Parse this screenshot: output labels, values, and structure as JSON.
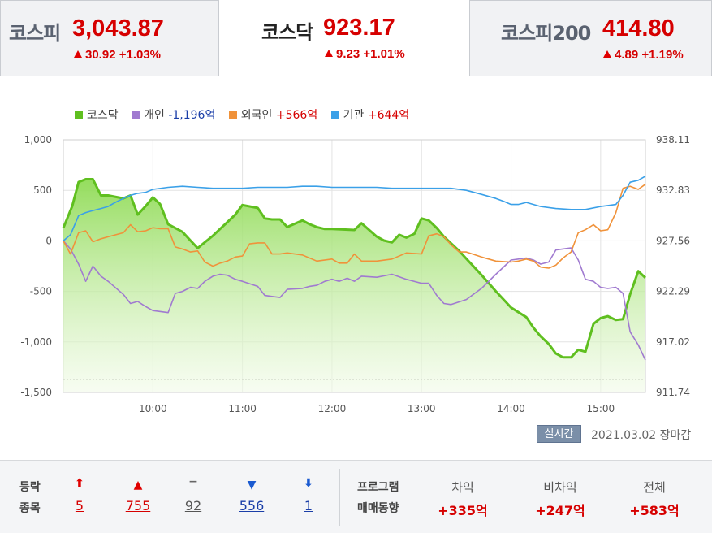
{
  "tabs": [
    {
      "name": "코스피",
      "value": "3,043.87",
      "change": "30.92",
      "pct": "+1.03%"
    },
    {
      "name": "코스닥",
      "value": "923.17",
      "change": "9.23",
      "pct": "+1.01%"
    },
    {
      "name": "코스피200",
      "value": "414.80",
      "change": "4.89",
      "pct": "+1.19%"
    }
  ],
  "legend": [
    {
      "label": "코스닥",
      "value": "",
      "color": "#5fbf1f"
    },
    {
      "label": "개인",
      "value": "-1,196억",
      "color": "#a07ad0"
    },
    {
      "label": "외국인",
      "value": "+566억",
      "color": "#f0923a"
    },
    {
      "label": "기관",
      "value": "+644억",
      "color": "#3aa0e8"
    }
  ],
  "chart_data": {
    "type": "line",
    "x_ticks": [
      "10:00",
      "11:00",
      "12:00",
      "13:00",
      "14:00",
      "15:00"
    ],
    "y_left_ticks": [
      "1,000",
      "500",
      "0",
      "-500",
      "-1,000",
      "-1,500"
    ],
    "y_left_range": [
      -1500,
      1000
    ],
    "y_right_ticks": [
      "938.11",
      "932.83",
      "927.56",
      "922.29",
      "917.02",
      "911.74"
    ],
    "y_right_range": [
      911.74,
      938.11
    ],
    "x_range": [
      9.0,
      15.5
    ],
    "index_baseline": 913.1,
    "series": [
      {
        "name": "코스닥",
        "axis": "right",
        "color": "#5fbf1f",
        "x": [
          9.0,
          9.1,
          9.17,
          9.25,
          9.33,
          9.42,
          9.5,
          9.67,
          9.75,
          9.83,
          9.92,
          10.0,
          10.08,
          10.17,
          10.33,
          10.42,
          10.5,
          10.67,
          10.75,
          10.83,
          10.92,
          11.0,
          11.17,
          11.25,
          11.33,
          11.42,
          11.5,
          11.67,
          11.75,
          11.83,
          11.92,
          12.0,
          12.25,
          12.33,
          12.5,
          12.58,
          12.67,
          12.75,
          12.83,
          12.92,
          13.0,
          13.08,
          13.17,
          13.25,
          13.33,
          13.42,
          13.5,
          13.67,
          13.83,
          14.0,
          14.17,
          14.25,
          14.33,
          14.42,
          14.5,
          14.58,
          14.67,
          14.75,
          14.83,
          14.92,
          15.0,
          15.08,
          15.17,
          15.25,
          15.33,
          15.42,
          15.5
        ],
        "y": [
          928.9,
          931.2,
          933.7,
          934.0,
          934.0,
          932.3,
          932.3,
          932.0,
          932.3,
          930.3,
          931.2,
          932.1,
          931.4,
          929.3,
          928.5,
          927.6,
          926.8,
          928.1,
          928.8,
          929.5,
          930.3,
          931.3,
          931.0,
          929.9,
          929.8,
          929.8,
          929.0,
          929.7,
          929.3,
          929.0,
          928.8,
          928.8,
          928.7,
          929.4,
          928.0,
          927.6,
          927.4,
          928.2,
          927.9,
          928.3,
          929.9,
          929.7,
          928.9,
          928.0,
          927.3,
          926.5,
          925.7,
          924.0,
          922.3,
          920.6,
          919.6,
          918.5,
          917.6,
          916.8,
          915.8,
          915.4,
          915.4,
          916.2,
          916.0,
          918.9,
          919.5,
          919.7,
          919.3,
          919.4,
          922.0,
          924.4,
          923.7
        ]
      },
      {
        "name": "개인",
        "axis": "left",
        "color": "#a07ad0",
        "x": [
          9.0,
          9.08,
          9.17,
          9.25,
          9.33,
          9.42,
          9.5,
          9.67,
          9.75,
          9.83,
          9.92,
          10.0,
          10.17,
          10.25,
          10.33,
          10.42,
          10.5,
          10.58,
          10.67,
          10.75,
          10.83,
          10.92,
          11.0,
          11.17,
          11.25,
          11.33,
          11.42,
          11.5,
          11.67,
          11.75,
          11.83,
          11.92,
          12.0,
          12.08,
          12.17,
          12.25,
          12.33,
          12.5,
          12.67,
          12.83,
          13.0,
          13.08,
          13.17,
          13.25,
          13.33,
          13.5,
          13.67,
          13.83,
          14.0,
          14.17,
          14.25,
          14.33,
          14.42,
          14.5,
          14.67,
          14.75,
          14.83,
          14.92,
          15.0,
          15.08,
          15.17,
          15.25,
          15.33,
          15.42,
          15.5
        ],
        "y": [
          0,
          -80,
          -230,
          -400,
          -250,
          -350,
          -400,
          -530,
          -620,
          -600,
          -650,
          -690,
          -710,
          -520,
          -500,
          -460,
          -470,
          -400,
          -350,
          -330,
          -340,
          -380,
          -400,
          -450,
          -540,
          -550,
          -560,
          -480,
          -470,
          -450,
          -440,
          -400,
          -380,
          -400,
          -370,
          -400,
          -350,
          -360,
          -330,
          -380,
          -420,
          -420,
          -540,
          -620,
          -630,
          -580,
          -470,
          -330,
          -190,
          -170,
          -190,
          -230,
          -210,
          -90,
          -70,
          -190,
          -380,
          -400,
          -460,
          -470,
          -460,
          -520,
          -900,
          -1030,
          -1180
        ]
      },
      {
        "name": "외국인",
        "axis": "left",
        "color": "#f0923a",
        "x": [
          9.0,
          9.08,
          9.17,
          9.25,
          9.33,
          9.42,
          9.5,
          9.67,
          9.75,
          9.83,
          9.92,
          10.0,
          10.08,
          10.17,
          10.25,
          10.33,
          10.42,
          10.5,
          10.58,
          10.67,
          10.75,
          10.83,
          10.92,
          11.0,
          11.08,
          11.17,
          11.25,
          11.33,
          11.42,
          11.5,
          11.67,
          11.83,
          12.0,
          12.08,
          12.17,
          12.25,
          12.33,
          12.42,
          12.5,
          12.67,
          12.83,
          13.0,
          13.08,
          13.17,
          13.25,
          13.33,
          13.42,
          13.5,
          13.67,
          13.83,
          14.0,
          14.08,
          14.17,
          14.25,
          14.33,
          14.42,
          14.5,
          14.58,
          14.67,
          14.75,
          14.83,
          14.92,
          15.0,
          15.08,
          15.17,
          15.25,
          15.33,
          15.42,
          15.5
        ],
        "y": [
          0,
          -130,
          80,
          100,
          -10,
          20,
          40,
          80,
          160,
          90,
          100,
          130,
          120,
          120,
          -60,
          -80,
          -110,
          -100,
          -210,
          -250,
          -220,
          -200,
          -160,
          -150,
          -30,
          -20,
          -20,
          -130,
          -130,
          -120,
          -140,
          -200,
          -180,
          -220,
          -220,
          -130,
          -200,
          -200,
          -200,
          -180,
          -120,
          -130,
          50,
          70,
          40,
          -40,
          -110,
          -110,
          -160,
          -200,
          -210,
          -200,
          -180,
          -200,
          -260,
          -270,
          -240,
          -170,
          -110,
          80,
          110,
          160,
          100,
          110,
          280,
          520,
          540,
          510,
          560
        ]
      },
      {
        "name": "기관",
        "axis": "left",
        "color": "#3aa0e8",
        "x": [
          9.0,
          9.08,
          9.17,
          9.25,
          9.33,
          9.42,
          9.5,
          9.58,
          9.67,
          9.75,
          9.83,
          9.92,
          10.0,
          10.17,
          10.33,
          10.5,
          10.67,
          10.83,
          11.0,
          11.17,
          11.33,
          11.5,
          11.67,
          11.83,
          12.0,
          12.17,
          12.33,
          12.5,
          12.67,
          12.83,
          13.0,
          13.17,
          13.33,
          13.5,
          13.67,
          13.83,
          13.92,
          14.0,
          14.08,
          14.17,
          14.33,
          14.5,
          14.67,
          14.83,
          15.0,
          15.08,
          15.17,
          15.25,
          15.33,
          15.42,
          15.5
        ],
        "y": [
          0,
          60,
          250,
          280,
          300,
          320,
          340,
          380,
          420,
          450,
          470,
          480,
          510,
          530,
          540,
          530,
          520,
          520,
          520,
          530,
          530,
          530,
          540,
          540,
          530,
          530,
          530,
          530,
          520,
          520,
          520,
          520,
          520,
          500,
          460,
          420,
          390,
          360,
          360,
          380,
          340,
          320,
          310,
          310,
          340,
          350,
          360,
          450,
          580,
          600,
          640
        ]
      }
    ]
  },
  "realtime_label": "실시간",
  "timestamp": "2021.03.02 장마감",
  "breadth": {
    "label_top": "등락",
    "label_bottom": "종목",
    "items": [
      {
        "icon": "upper-limit",
        "count": "5",
        "style": "red"
      },
      {
        "icon": "up",
        "count": "755",
        "style": "red"
      },
      {
        "icon": "flat",
        "count": "92",
        "style": "gray"
      },
      {
        "icon": "down",
        "count": "556",
        "style": "blue"
      },
      {
        "icon": "lower-limit",
        "count": "1",
        "style": "blue"
      }
    ]
  },
  "program": {
    "label_top": "프로그램",
    "label_bottom": "매매동향",
    "items": [
      {
        "label": "차익",
        "value": "+335억"
      },
      {
        "label": "비차익",
        "value": "+247억"
      },
      {
        "label": "전체",
        "value": "+583억"
      }
    ]
  }
}
